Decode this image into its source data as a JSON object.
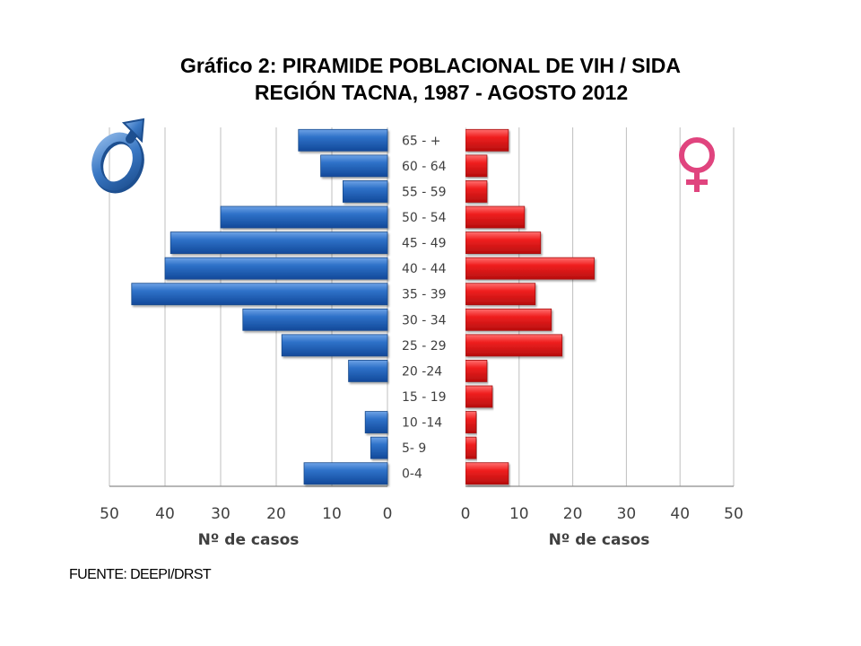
{
  "title_line1": "Gráfico 2: PIRAMIDE POBLACIONAL  DE VIH / SIDA",
  "title_line2": "REGIÓN TACNA, 1987 - AGOSTO 2012",
  "source": "FUENTE: DEEPI/DRST",
  "chart_data": [
    {
      "type": "bar",
      "orientation": "horizontal",
      "side": "left",
      "symbol": "male-symbol-icon",
      "color": "#1f5fb0",
      "categories": [
        "0-4",
        "5- 9",
        "10 -14",
        "15 - 19",
        "20 -24",
        "25 - 29",
        "30 - 34",
        "35 - 39",
        "40 - 44",
        "45 - 49",
        "50 - 54",
        "55 - 59",
        "60 - 64",
        "65 - +"
      ],
      "values": [
        15,
        3,
        4,
        0,
        7,
        19,
        26,
        46,
        40,
        39,
        30,
        8,
        12,
        16
      ],
      "xlabel": "Nº de casos",
      "xlim": [
        0,
        50
      ],
      "xticks": [
        50,
        40,
        30,
        20,
        10,
        0
      ],
      "reversed": true,
      "grid": true
    },
    {
      "type": "bar",
      "orientation": "horizontal",
      "side": "right",
      "symbol": "female-symbol-icon",
      "color": "#e32222",
      "categories": [
        "0-4",
        "5- 9",
        "10 -14",
        "15 - 19",
        "20 -24",
        "25 - 29",
        "30 - 34",
        "35 - 39",
        "40 - 44",
        "45 - 49",
        "50 - 54",
        "55 - 59",
        "60 - 64",
        "65 - +"
      ],
      "values": [
        8,
        2,
        2,
        5,
        4,
        18,
        16,
        13,
        24,
        14,
        11,
        4,
        4,
        8
      ],
      "xlabel": "Nº de casos",
      "xlim": [
        0,
        50
      ],
      "xticks": [
        0,
        10,
        20,
        30,
        40,
        50
      ],
      "grid": true
    }
  ]
}
